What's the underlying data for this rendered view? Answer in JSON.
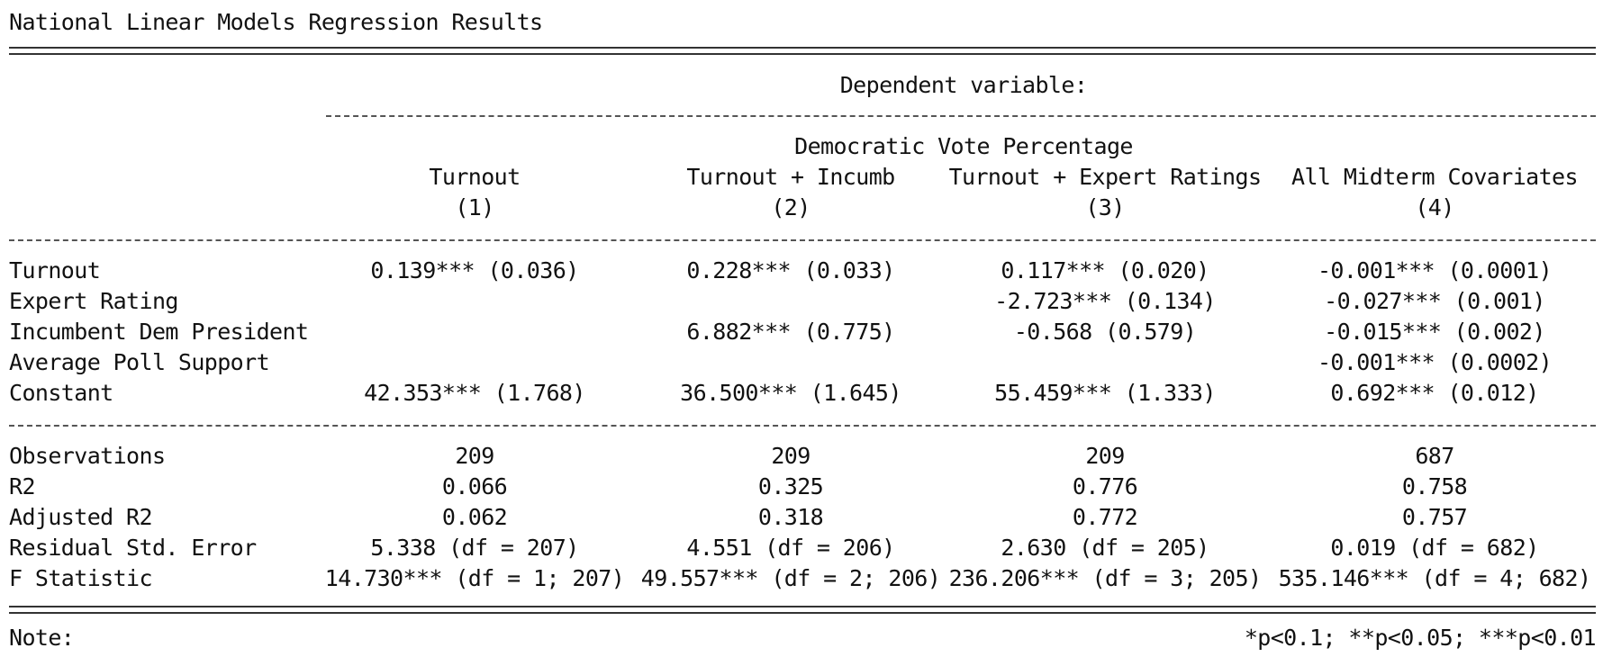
{
  "title": "National Linear Models Regression Results",
  "dependent_variable_label": "Dependent variable:",
  "dependent_variable": "Democratic Vote Percentage",
  "models": [
    {
      "name": "Turnout",
      "number": "(1)"
    },
    {
      "name": "Turnout + Incumb",
      "number": "(2)"
    },
    {
      "name": "Turnout + Expert Ratings",
      "number": "(3)"
    },
    {
      "name": "All Midterm Covariates",
      "number": "(4)"
    }
  ],
  "coefficients": [
    {
      "label": "Turnout",
      "values": [
        "0.139*** (0.036)",
        "0.228*** (0.033)",
        "0.117*** (0.020)",
        "-0.001*** (0.0001)"
      ]
    },
    {
      "label": "Expert Rating",
      "values": [
        "",
        "",
        "-2.723*** (0.134)",
        "-0.027*** (0.001)"
      ]
    },
    {
      "label": "Incumbent Dem President",
      "values": [
        "",
        "6.882*** (0.775)",
        "-0.568 (0.579)",
        "-0.015*** (0.002)"
      ]
    },
    {
      "label": "Average Poll Support",
      "values": [
        "",
        "",
        "",
        "-0.001*** (0.0002)"
      ]
    },
    {
      "label": "Constant",
      "values": [
        "42.353*** (1.768)",
        "36.500*** (1.645)",
        "55.459*** (1.333)",
        "0.692*** (0.012)"
      ]
    }
  ],
  "statistics": [
    {
      "label": "Observations",
      "values": [
        "209",
        "209",
        "209",
        "687"
      ]
    },
    {
      "label": "R2",
      "values": [
        "0.066",
        "0.325",
        "0.776",
        "0.758"
      ]
    },
    {
      "label": "Adjusted R2",
      "values": [
        "0.062",
        "0.318",
        "0.772",
        "0.757"
      ]
    },
    {
      "label": "Residual Std. Error",
      "values": [
        "5.338 (df = 207)",
        "4.551 (df = 206)",
        "2.630 (df = 205)",
        "0.019 (df = 682)"
      ]
    },
    {
      "label": "F Statistic",
      "values": [
        "14.730*** (df = 1; 207)",
        "49.557*** (df = 2; 206)",
        "236.206*** (df = 3; 205)",
        "535.146*** (df = 4; 682)"
      ]
    }
  ],
  "note_label": "Note:",
  "note_text": "*p<0.1; **p<0.05; ***p<0.01"
}
